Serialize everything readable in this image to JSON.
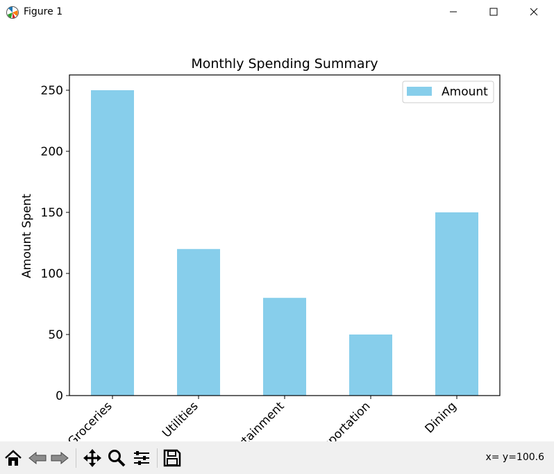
{
  "window": {
    "title": "Figure 1",
    "minimize_icon": "minimize-icon",
    "maximize_icon": "maximize-icon",
    "close_icon": "close-icon"
  },
  "toolbar": {
    "buttons": [
      "home-icon",
      "back-icon",
      "forward-icon",
      "pan-icon",
      "zoom-icon",
      "configure-subplots-icon",
      "save-icon"
    ],
    "coords": "x= y=100.6"
  },
  "chart_data": {
    "type": "bar",
    "title": "Monthly Spending Summary",
    "xlabel": "",
    "ylabel": "Amount Spent",
    "categories": [
      "Groceries",
      "Utilities",
      "Entertainment",
      "Transportation",
      "Dining"
    ],
    "series": [
      {
        "name": "Amount",
        "values": [
          250,
          120,
          80,
          50,
          150
        ],
        "color": "#87ceeb"
      }
    ],
    "ylim": [
      0,
      262.5
    ],
    "yticks": [
      0,
      50,
      100,
      150,
      200,
      250
    ],
    "legend": "top-right",
    "grid": false
  }
}
